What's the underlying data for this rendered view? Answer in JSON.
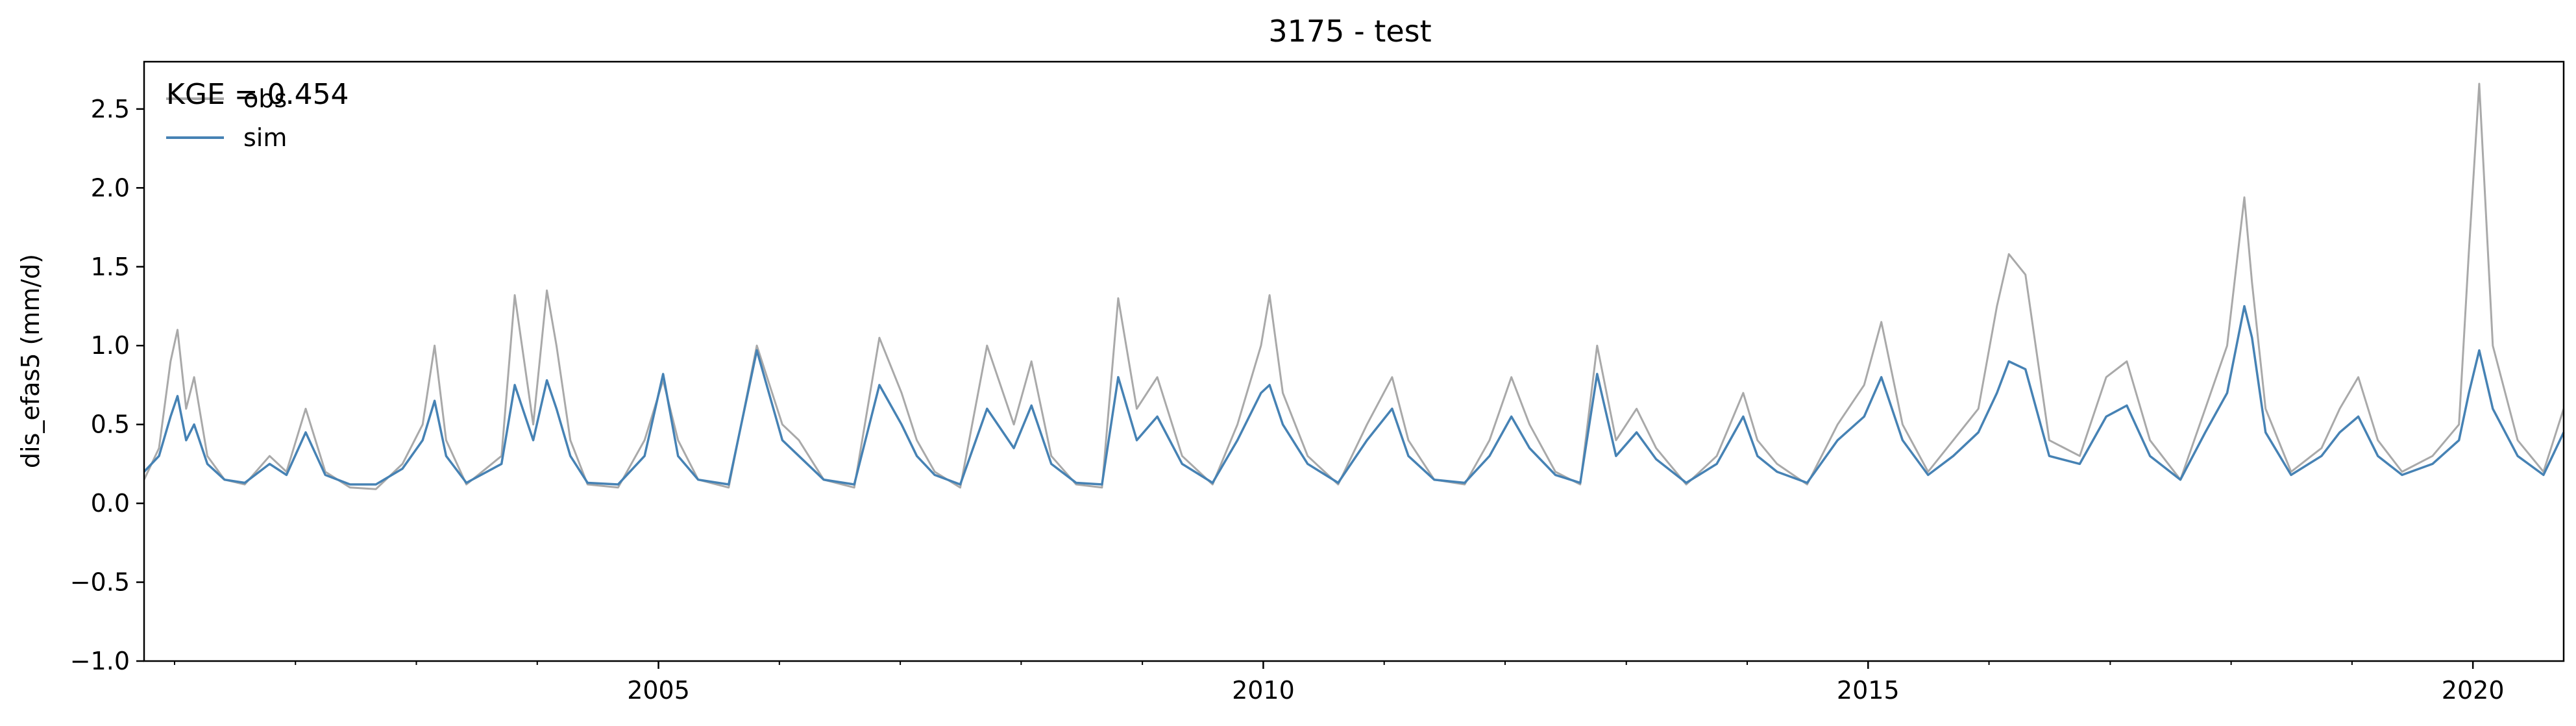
{
  "chart_data": {
    "type": "line",
    "title": "3175 - test",
    "ylabel": "dis_efas5 (mm/d)",
    "xlabel": "",
    "xlim": [
      "2000-10-01",
      "2020-10-01"
    ],
    "ylim": [
      -1.0,
      2.8
    ],
    "yticks": [
      "−1.0",
      "−0.5",
      "0.0",
      "0.5",
      "1.0",
      "1.5",
      "2.0",
      "2.5"
    ],
    "ytick_values": [
      -1.0,
      -0.5,
      0.0,
      0.5,
      1.0,
      1.5,
      2.0,
      2.5
    ],
    "xticks": [
      "2005",
      "2010",
      "2015",
      "2020"
    ],
    "xtick_dates": [
      "2005-01-01",
      "2010-01-01",
      "2015-01-01",
      "2020-01-01"
    ],
    "annotation": "KGE = 0.454",
    "legend": {
      "position": "top-left",
      "entries": [
        "obs",
        "sim"
      ]
    },
    "grid": false,
    "series": [
      {
        "name": "obs",
        "color": "#a9a9a9",
        "x": [
          "2000-10-01",
          "2000-11-15",
          "2000-12-20",
          "2001-01-10",
          "2001-02-05",
          "2001-03-01",
          "2001-04-10",
          "2001-06-01",
          "2001-08-01",
          "2001-10-15",
          "2001-12-05",
          "2002-02-01",
          "2002-04-01",
          "2002-06-15",
          "2002-09-01",
          "2002-11-20",
          "2003-01-20",
          "2003-02-25",
          "2003-04-01",
          "2003-06-01",
          "2003-09-15",
          "2003-10-25",
          "2003-12-20",
          "2004-01-30",
          "2004-02-28",
          "2004-04-10",
          "2004-06-01",
          "2004-09-01",
          "2004-11-20",
          "2005-01-15",
          "2005-03-01",
          "2005-05-01",
          "2005-08-01",
          "2005-10-25",
          "2006-01-10",
          "2006-03-01",
          "2006-05-15",
          "2006-08-15",
          "2006-10-30",
          "2007-01-05",
          "2007-02-20",
          "2007-04-15",
          "2007-07-01",
          "2007-09-20",
          "2007-12-10",
          "2008-02-01",
          "2008-04-01",
          "2008-06-15",
          "2008-09-01",
          "2008-10-20",
          "2008-12-15",
          "2009-02-15",
          "2009-05-01",
          "2009-08-01",
          "2009-10-15",
          "2009-12-25",
          "2010-01-20",
          "2010-03-01",
          "2010-05-15",
          "2010-08-15",
          "2010-11-10",
          "2011-01-25",
          "2011-03-15",
          "2011-06-01",
          "2011-09-01",
          "2011-11-15",
          "2012-01-20",
          "2012-03-15",
          "2012-06-01",
          "2012-08-15",
          "2012-10-05",
          "2012-12-01",
          "2013-02-01",
          "2013-04-01",
          "2013-07-01",
          "2013-10-01",
          "2013-12-20",
          "2014-02-01",
          "2014-04-01",
          "2014-07-01",
          "2014-10-01",
          "2014-12-20",
          "2015-02-10",
          "2015-04-15",
          "2015-07-01",
          "2015-09-15",
          "2015-11-30",
          "2016-01-25",
          "2016-03-01",
          "2016-04-20",
          "2016-07-01",
          "2016-10-01",
          "2016-12-20",
          "2017-02-20",
          "2017-05-01",
          "2017-08-01",
          "2017-10-15",
          "2017-12-20",
          "2018-02-10",
          "2018-03-05",
          "2018-04-15",
          "2018-07-01",
          "2018-10-01",
          "2018-11-25",
          "2019-01-20",
          "2019-03-20",
          "2019-06-01",
          "2019-09-01",
          "2019-11-20",
          "2019-12-20",
          "2020-01-20",
          "2020-03-01",
          "2020-05-15",
          "2020-08-01",
          "2020-10-01"
        ],
        "y": [
          0.15,
          0.35,
          0.9,
          1.1,
          0.6,
          0.8,
          0.3,
          0.15,
          0.12,
          0.3,
          0.2,
          0.6,
          0.2,
          0.1,
          0.09,
          0.25,
          0.5,
          1.0,
          0.4,
          0.12,
          0.3,
          1.32,
          0.5,
          1.35,
          1.0,
          0.4,
          0.12,
          0.1,
          0.4,
          0.78,
          0.4,
          0.15,
          0.1,
          1.0,
          0.5,
          0.4,
          0.15,
          0.1,
          1.05,
          0.7,
          0.4,
          0.2,
          0.1,
          1.0,
          0.5,
          0.9,
          0.3,
          0.12,
          0.1,
          1.3,
          0.6,
          0.8,
          0.3,
          0.12,
          0.5,
          1.0,
          1.32,
          0.7,
          0.3,
          0.12,
          0.5,
          0.8,
          0.4,
          0.15,
          0.12,
          0.4,
          0.8,
          0.5,
          0.2,
          0.12,
          1.0,
          0.4,
          0.6,
          0.35,
          0.12,
          0.3,
          0.7,
          0.4,
          0.25,
          0.12,
          0.5,
          0.75,
          1.15,
          0.5,
          0.2,
          0.4,
          0.6,
          1.25,
          1.58,
          1.45,
          0.4,
          0.3,
          0.8,
          0.9,
          0.4,
          0.15,
          0.6,
          1.0,
          1.94,
          1.4,
          0.6,
          0.2,
          0.35,
          0.6,
          0.8,
          0.4,
          0.2,
          0.3,
          0.5,
          1.6,
          2.66,
          1.0,
          0.4,
          0.2,
          0.6
        ]
      },
      {
        "name": "sim",
        "color": "#4682b4",
        "x": [
          "2000-10-01",
          "2000-11-15",
          "2000-12-20",
          "2001-01-10",
          "2001-02-05",
          "2001-03-01",
          "2001-04-10",
          "2001-06-01",
          "2001-08-01",
          "2001-10-15",
          "2001-12-05",
          "2002-02-01",
          "2002-04-01",
          "2002-06-15",
          "2002-09-01",
          "2002-11-20",
          "2003-01-20",
          "2003-02-25",
          "2003-04-01",
          "2003-06-01",
          "2003-09-15",
          "2003-10-25",
          "2003-12-20",
          "2004-01-30",
          "2004-02-28",
          "2004-04-10",
          "2004-06-01",
          "2004-09-01",
          "2004-11-20",
          "2005-01-15",
          "2005-03-01",
          "2005-05-01",
          "2005-08-01",
          "2005-10-25",
          "2006-01-10",
          "2006-03-01",
          "2006-05-15",
          "2006-08-15",
          "2006-10-30",
          "2007-01-05",
          "2007-02-20",
          "2007-04-15",
          "2007-07-01",
          "2007-09-20",
          "2007-12-10",
          "2008-02-01",
          "2008-04-01",
          "2008-06-15",
          "2008-09-01",
          "2008-10-20",
          "2008-12-15",
          "2009-02-15",
          "2009-05-01",
          "2009-08-01",
          "2009-10-15",
          "2009-12-25",
          "2010-01-20",
          "2010-03-01",
          "2010-05-15",
          "2010-08-15",
          "2010-11-10",
          "2011-01-25",
          "2011-03-15",
          "2011-06-01",
          "2011-09-01",
          "2011-11-15",
          "2012-01-20",
          "2012-03-15",
          "2012-06-01",
          "2012-08-15",
          "2012-10-05",
          "2012-12-01",
          "2013-02-01",
          "2013-04-01",
          "2013-07-01",
          "2013-10-01",
          "2013-12-20",
          "2014-02-01",
          "2014-04-01",
          "2014-07-01",
          "2014-10-01",
          "2014-12-20",
          "2015-02-10",
          "2015-04-15",
          "2015-07-01",
          "2015-09-15",
          "2015-11-30",
          "2016-01-25",
          "2016-03-01",
          "2016-04-20",
          "2016-07-01",
          "2016-10-01",
          "2016-12-20",
          "2017-02-20",
          "2017-05-01",
          "2017-08-01",
          "2017-10-15",
          "2017-12-20",
          "2018-02-10",
          "2018-03-05",
          "2018-04-15",
          "2018-07-01",
          "2018-10-01",
          "2018-11-25",
          "2019-01-20",
          "2019-03-20",
          "2019-06-01",
          "2019-09-01",
          "2019-11-20",
          "2019-12-20",
          "2020-01-20",
          "2020-03-01",
          "2020-05-15",
          "2020-08-01",
          "2020-10-01"
        ],
        "y": [
          0.2,
          0.3,
          0.55,
          0.68,
          0.4,
          0.5,
          0.25,
          0.15,
          0.13,
          0.25,
          0.18,
          0.45,
          0.18,
          0.12,
          0.12,
          0.22,
          0.4,
          0.65,
          0.3,
          0.13,
          0.25,
          0.75,
          0.4,
          0.78,
          0.6,
          0.3,
          0.13,
          0.12,
          0.3,
          0.82,
          0.3,
          0.15,
          0.12,
          0.97,
          0.4,
          0.3,
          0.15,
          0.12,
          0.75,
          0.5,
          0.3,
          0.18,
          0.12,
          0.6,
          0.35,
          0.62,
          0.25,
          0.13,
          0.12,
          0.8,
          0.4,
          0.55,
          0.25,
          0.13,
          0.4,
          0.7,
          0.75,
          0.5,
          0.25,
          0.13,
          0.4,
          0.6,
          0.3,
          0.15,
          0.13,
          0.3,
          0.55,
          0.35,
          0.18,
          0.13,
          0.82,
          0.3,
          0.45,
          0.28,
          0.13,
          0.25,
          0.55,
          0.3,
          0.2,
          0.13,
          0.4,
          0.55,
          0.8,
          0.4,
          0.18,
          0.3,
          0.45,
          0.7,
          0.9,
          0.85,
          0.3,
          0.25,
          0.55,
          0.62,
          0.3,
          0.15,
          0.45,
          0.7,
          1.25,
          1.05,
          0.45,
          0.18,
          0.3,
          0.45,
          0.55,
          0.3,
          0.18,
          0.25,
          0.4,
          0.7,
          0.97,
          0.6,
          0.3,
          0.18,
          0.45
        ]
      }
    ]
  }
}
